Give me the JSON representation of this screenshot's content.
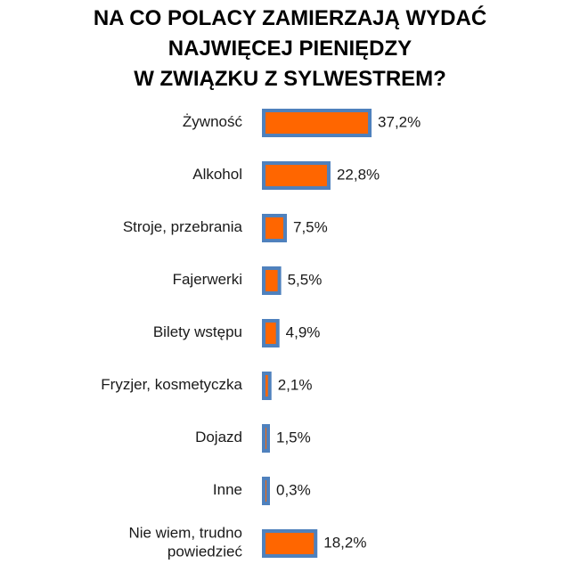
{
  "chart_data": {
    "type": "bar",
    "orientation": "horizontal",
    "title_lines": [
      "NA CO POLACY ZAMIERZAJĄ WYDAĆ",
      "NAJWIĘCEJ PIENIĘDZY",
      "W ZWIĄZKU Z SYLWESTREM?"
    ],
    "categories": [
      [
        "Żywność"
      ],
      [
        "Alkohol"
      ],
      [
        "Stroje, przebrania"
      ],
      [
        "Fajerwerki"
      ],
      [
        "Bilety wstępu"
      ],
      [
        "Fryzjer, kosmetyczka"
      ],
      [
        "Dojazd"
      ],
      [
        "Inne"
      ],
      [
        "Nie wiem, trudno",
        "powiedzieć"
      ]
    ],
    "values": [
      37.2,
      22.8,
      7.5,
      5.5,
      4.9,
      2.1,
      1.5,
      0.3,
      18.2
    ],
    "value_labels": [
      "37,2%",
      "22,8%",
      "7,5%",
      "5,5%",
      "4,9%",
      "2,1%",
      "1,5%",
      "0,3%",
      "18,2%"
    ],
    "unit": "%",
    "bar_fill": "#ff6600",
    "bar_border": "#4f81bd",
    "grid": false,
    "legend": "none"
  }
}
